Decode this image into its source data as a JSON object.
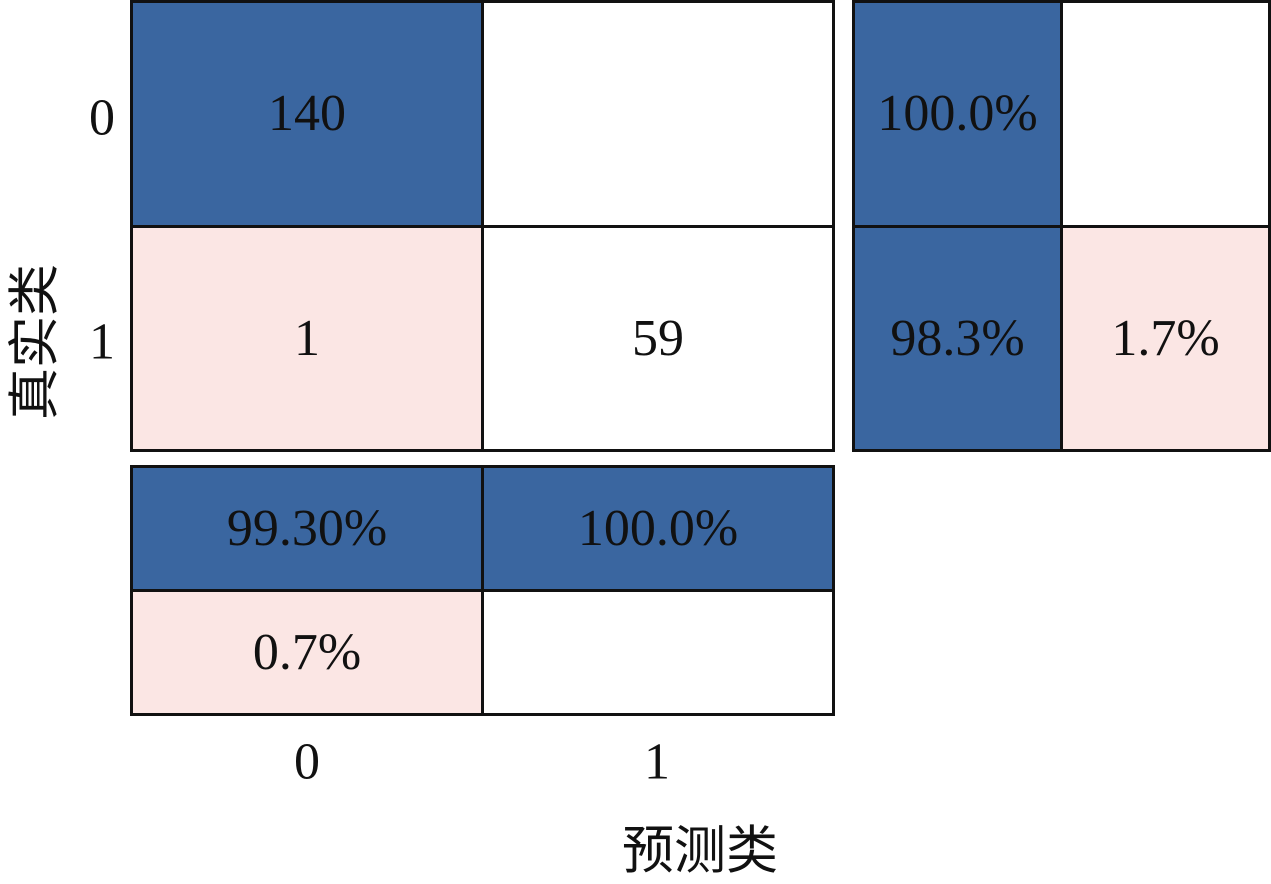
{
  "chart_data": {
    "type": "heatmap",
    "xlabel": "预测类",
    "ylabel": "真实类",
    "x_tick_labels": [
      "0",
      "1"
    ],
    "y_tick_labels": [
      "0",
      "1"
    ],
    "colors": {
      "high": "#3a66a0",
      "low": "#fbe6e4",
      "empty": "#ffffff"
    },
    "matrix": [
      [
        {
          "text": "140",
          "value": 140,
          "fill": "high"
        },
        {
          "text": "",
          "value": 0,
          "fill": "empty"
        }
      ],
      [
        {
          "text": "1",
          "value": 1,
          "fill": "low"
        },
        {
          "text": "59",
          "value": 59,
          "fill": "empty"
        }
      ]
    ],
    "row_summary": [
      [
        {
          "text": "100.0%",
          "value": 100.0,
          "fill": "high"
        },
        {
          "text": "",
          "value": 0,
          "fill": "empty"
        }
      ],
      [
        {
          "text": "98.3%",
          "value": 98.3,
          "fill": "high"
        },
        {
          "text": "1.7%",
          "value": 1.7,
          "fill": "low"
        }
      ]
    ],
    "column_summary": [
      [
        {
          "text": "99.30%",
          "value": 99.3,
          "fill": "high"
        },
        {
          "text": "100.0%",
          "value": 100.0,
          "fill": "high"
        }
      ],
      [
        {
          "text": "0.7%",
          "value": 0.7,
          "fill": "low"
        },
        {
          "text": "",
          "value": 0,
          "fill": "empty"
        }
      ]
    ]
  }
}
